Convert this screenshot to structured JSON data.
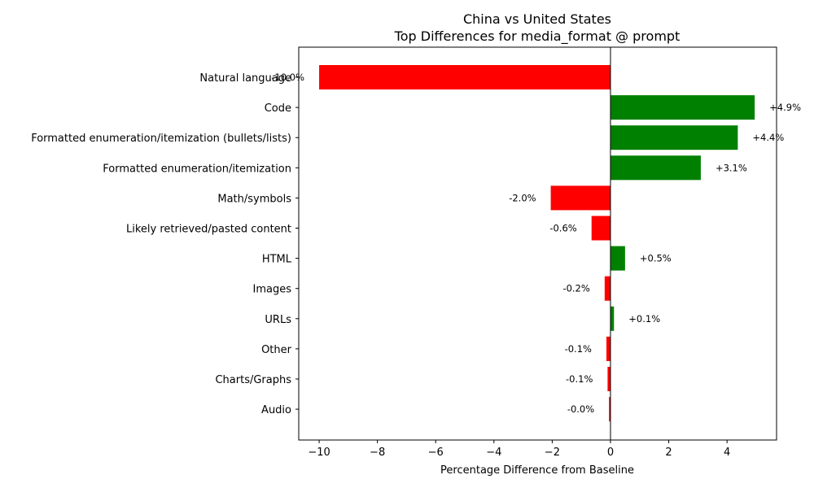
{
  "chart_data": {
    "type": "bar",
    "orientation": "horizontal",
    "title": "China vs United States",
    "subtitle": "Top Differences for media_format @ prompt",
    "xlabel": "Percentage Difference from Baseline",
    "ylabel": "",
    "xlim": [
      -10.7,
      5.7
    ],
    "x_ticks": [
      -10,
      -8,
      -6,
      -4,
      -2,
      0,
      2,
      4
    ],
    "x_tick_labels": [
      "−10",
      "−8",
      "−6",
      "−4",
      "−2",
      "0",
      "2",
      "4"
    ],
    "grid": false,
    "categories": [
      "Natural language",
      "Code",
      "Formatted enumeration/itemization (bullets/lists)",
      "Formatted enumeration/itemization",
      "Math/symbols",
      "Likely retrieved/pasted content",
      "HTML",
      "Images",
      "URLs",
      "Other",
      "Charts/Graphs",
      "Audio"
    ],
    "values": [
      -10.0,
      4.95,
      4.37,
      3.1,
      -2.05,
      -0.65,
      0.5,
      -0.2,
      0.12,
      -0.14,
      -0.1,
      -0.05
    ],
    "data_labels": [
      "-10.0%",
      "+4.9%",
      "+4.4%",
      "+3.1%",
      "-2.0%",
      "-0.6%",
      "+0.5%",
      "-0.2%",
      "+0.1%",
      "-0.1%",
      "-0.1%",
      "-0.0%"
    ],
    "colors": {
      "positive": "#008000",
      "negative": "#ff0000"
    }
  }
}
